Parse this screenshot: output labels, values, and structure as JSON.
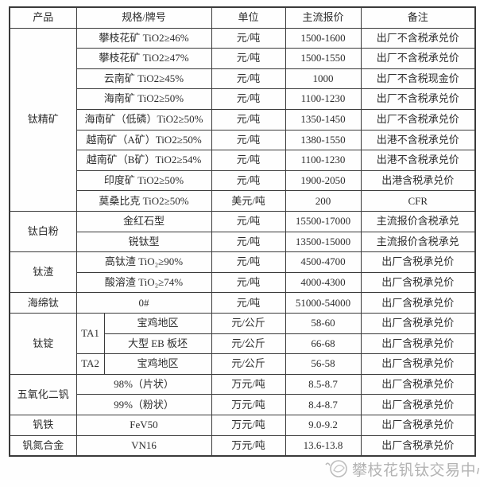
{
  "table": {
    "headers": [
      "产品",
      "规格/牌号",
      "单位",
      "主流报价",
      "备注"
    ],
    "sections": [
      {
        "product": "钛精矿",
        "rows": [
          {
            "spec": "攀枝花矿 TiO2≥46%",
            "unit": "元/吨",
            "price": "1500-1600",
            "note": "出厂不含税承兑价"
          },
          {
            "spec": "攀枝花矿 TiO2≥47%",
            "unit": "元/吨",
            "price": "1500-1550",
            "note": "出厂不含税承兑价"
          },
          {
            "spec": "云南矿 TiO2≥45%",
            "unit": "元/吨",
            "price": "1000",
            "note": "出厂不含税现金价"
          },
          {
            "spec": "海南矿 TiO2≥50%",
            "unit": "元/吨",
            "price": "1100-1230",
            "note": "出厂不含税承兑价"
          },
          {
            "spec": "海南矿（低磷）TiO2≥50%",
            "unit": "元/吨",
            "price": "1350-1450",
            "note": "出厂不含税承兑价"
          },
          {
            "spec": "越南矿（A矿）TiO2≥50%",
            "unit": "元/吨",
            "price": "1380-1550",
            "note": "出港不含税承兑价"
          },
          {
            "spec": "越南矿（B矿）TiO2≥54%",
            "unit": "元/吨",
            "price": "1100-1230",
            "note": "出港不含税承兑价"
          },
          {
            "spec": "印度矿 TiO2≥50%",
            "unit": "元/吨",
            "price": "1900-2050",
            "note": "出港含税承兑价"
          },
          {
            "spec": "莫桑比克 TiO2≥50%",
            "unit": "美元/吨",
            "price": "200",
            "note": "CFR"
          }
        ]
      },
      {
        "product": "钛白粉",
        "rows": [
          {
            "spec": "金红石型",
            "unit": "元/吨",
            "price": "15500-17000",
            "note": "主流报价含税承兑"
          },
          {
            "spec": "锐钛型",
            "unit": "元/吨",
            "price": "13500-15000",
            "note": "主流报价含税承兑"
          }
        ]
      },
      {
        "product": "钛渣",
        "rows": [
          {
            "spec": "高钛渣 TiO₂≥90%",
            "unit": "元/吨",
            "price": "4500-4700",
            "note": "出厂含税承兑价"
          },
          {
            "spec": "酸溶渣 TiO₂≥74%",
            "unit": "元/吨",
            "price": "4000-4300",
            "note": "出厂含税承兑价"
          }
        ]
      },
      {
        "product": "海绵钛",
        "rows": [
          {
            "spec": "0#",
            "unit": "元/吨",
            "price": "51000-54000",
            "note": "出厂含税承兑价"
          }
        ]
      },
      {
        "product": "钛锭",
        "has_grade_column": true,
        "rows": [
          {
            "grade": "TA1",
            "grade_rowspan": 2,
            "spec": "宝鸡地区",
            "unit": "元/公斤",
            "price": "58-60",
            "note": "出厂含税承兑价"
          },
          {
            "spec": "大型 EB 板坯",
            "unit": "元/公斤",
            "price": "66-68",
            "note": "出厂含税承兑价"
          },
          {
            "grade": "TA2",
            "grade_rowspan": 1,
            "spec": "宝鸡地区",
            "unit": "元/公斤",
            "price": "56-58",
            "note": "出厂含税承兑价"
          }
        ]
      },
      {
        "product": "五氧化二钒",
        "rows": [
          {
            "spec": "98%（片状）",
            "unit": "万元/吨",
            "price": "8.5-8.7",
            "note": "出厂含税承兑价"
          },
          {
            "spec": "99%（粉状）",
            "unit": "万元/吨",
            "price": "8.4-8.7",
            "note": "出厂含税承兑价"
          }
        ]
      },
      {
        "product": "钒铁",
        "rows": [
          {
            "spec": "FeV50",
            "unit": "万元/吨",
            "price": "9.0-9.2",
            "note": "出厂含税承兑价"
          }
        ]
      },
      {
        "product": "钒氮合金",
        "rows": [
          {
            "spec": "VN16",
            "unit": "万元/吨",
            "price": "13.6-13.8",
            "note": "出厂含税承兑价"
          }
        ]
      }
    ]
  },
  "watermark": {
    "text": "攀枝花钒钛交易中心"
  }
}
